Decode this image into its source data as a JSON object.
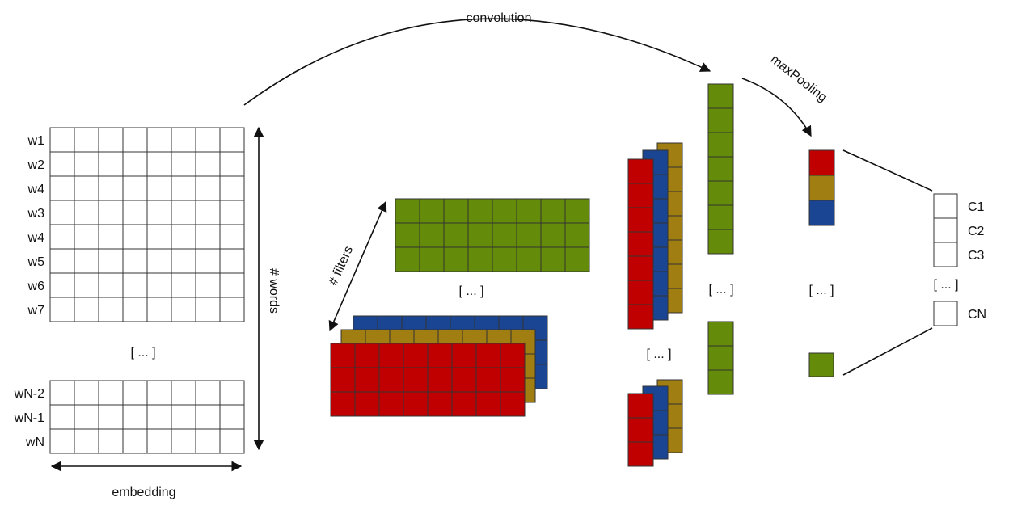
{
  "colors": {
    "red": "#c00000",
    "gold": "#a07e12",
    "blue": "#1a4592",
    "green": "#648c0a",
    "grid": "#333333",
    "line": "#111111"
  },
  "labels": {
    "convolution": "convolution",
    "max_pooling": "maxPooling",
    "num_words": "# words",
    "num_filters": "# filters",
    "embedding": "embedding",
    "ellipsis": "[ ... ]"
  },
  "word_rows_top": [
    "w1",
    "w2",
    "w4",
    "w3",
    "w4",
    "w5",
    "w6",
    "w7"
  ],
  "word_rows_bottom": [
    "wN-2",
    "wN-1",
    "wN"
  ],
  "classes_top": [
    "C1",
    "C2",
    "C3"
  ],
  "classes_bottom": [
    "CN"
  ],
  "pooled_colors": [
    "red",
    "gold",
    "blue"
  ]
}
